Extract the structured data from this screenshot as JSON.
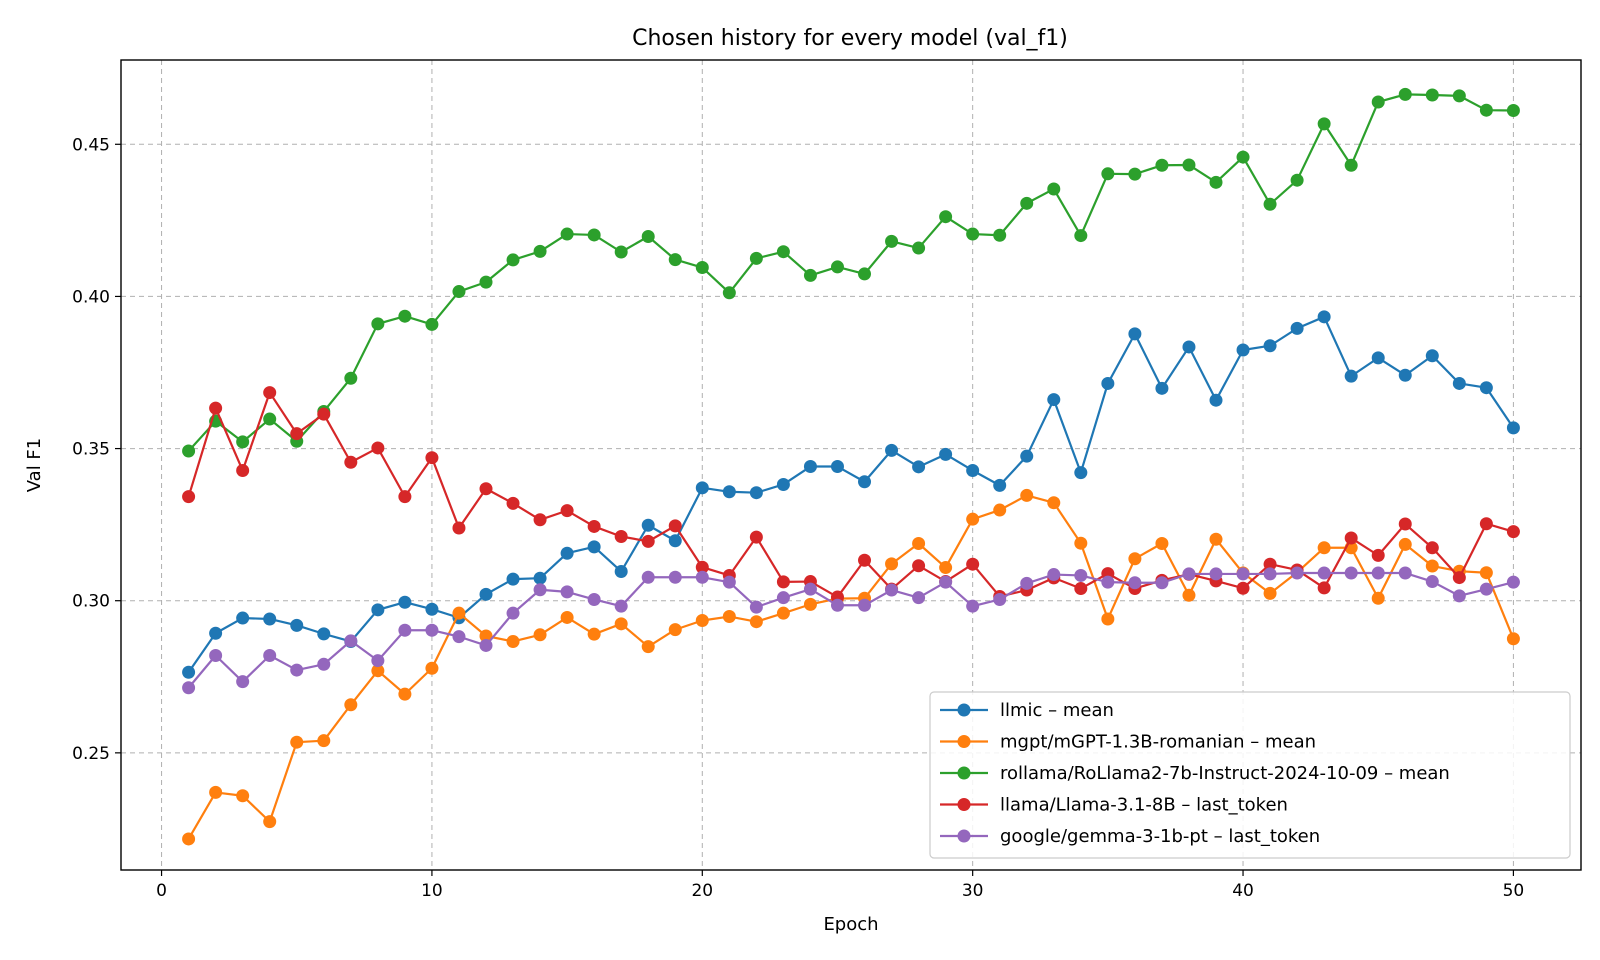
{
  "chart_data": {
    "type": "line",
    "title": "Chosen history for every model (val_f1)",
    "xlabel": "Epoch",
    "ylabel": "Val F1",
    "xlim": [
      -1.5,
      52.5
    ],
    "ylim": [
      0.2115,
      0.4777
    ],
    "xticks": [
      0,
      10,
      20,
      30,
      40,
      50
    ],
    "yticks": [
      0.25,
      0.3,
      0.35,
      0.4,
      0.45
    ],
    "ytick_labels": [
      "0.25",
      "0.30",
      "0.35",
      "0.40",
      "0.45"
    ],
    "grid": true,
    "legend_position": "lower-right",
    "x": [
      1,
      2,
      3,
      4,
      5,
      6,
      7,
      8,
      9,
      10,
      11,
      12,
      13,
      14,
      15,
      16,
      17,
      18,
      19,
      20,
      21,
      22,
      23,
      24,
      25,
      26,
      27,
      28,
      29,
      30,
      31,
      32,
      33,
      34,
      35,
      36,
      37,
      38,
      39,
      40,
      41,
      42,
      43,
      44,
      45,
      46,
      47,
      48,
      49,
      50
    ],
    "series": [
      {
        "name": "llmic – mean",
        "color": "#1f77b4",
        "values": [
          0.2765,
          0.2893,
          0.2943,
          0.294,
          0.2919,
          0.2891,
          0.2866,
          0.297,
          0.2995,
          0.2972,
          0.2944,
          0.3021,
          0.3071,
          0.3074,
          0.3156,
          0.3177,
          0.3096,
          0.3248,
          0.3197,
          0.3371,
          0.3358,
          0.3355,
          0.3382,
          0.3441,
          0.3441,
          0.3391,
          0.3494,
          0.344,
          0.3481,
          0.3428,
          0.3379,
          0.3475,
          0.3661,
          0.3421,
          0.3714,
          0.3877,
          0.3698,
          0.3834,
          0.3659,
          0.3824,
          0.3838,
          0.3895,
          0.3933,
          0.3738,
          0.3798,
          0.3741,
          0.3805,
          0.3714,
          0.37,
          0.3568
        ]
      },
      {
        "name": "mgpt/mGPT-1.3B-romanian – mean",
        "color": "#ff7f0e",
        "values": [
          0.2217,
          0.237,
          0.2359,
          0.2274,
          0.2535,
          0.254,
          0.2658,
          0.277,
          0.2693,
          0.2778,
          0.2959,
          0.2884,
          0.2866,
          0.2888,
          0.2945,
          0.289,
          0.2924,
          0.2849,
          0.2905,
          0.2935,
          0.2948,
          0.2931,
          0.2959,
          0.2988,
          0.3007,
          0.3008,
          0.3121,
          0.3188,
          0.3109,
          0.3268,
          0.3298,
          0.3346,
          0.3322,
          0.3189,
          0.294,
          0.3138,
          0.3188,
          0.3018,
          0.3202,
          0.3091,
          0.3024,
          0.3093,
          0.3174,
          0.3174,
          0.3008,
          0.3185,
          0.3114,
          0.3097,
          0.3092,
          0.2875
        ]
      },
      {
        "name": "rollama/RoLlama2-7b-Instruct-2024-10-09 – mean",
        "color": "#2ca02c",
        "values": [
          0.3492,
          0.359,
          0.3522,
          0.3597,
          0.3524,
          0.3622,
          0.3731,
          0.391,
          0.3935,
          0.3908,
          0.4016,
          0.4047,
          0.412,
          0.4148,
          0.4205,
          0.4202,
          0.4146,
          0.4197,
          0.4121,
          0.4095,
          0.4012,
          0.4125,
          0.4147,
          0.4069,
          0.4097,
          0.4074,
          0.4181,
          0.4159,
          0.4262,
          0.4205,
          0.4201,
          0.4306,
          0.4353,
          0.42,
          0.4403,
          0.4402,
          0.4431,
          0.4432,
          0.4375,
          0.4458,
          0.4303,
          0.4382,
          0.4567,
          0.4431,
          0.4639,
          0.4664,
          0.4662,
          0.4659,
          0.4612,
          0.4611
        ]
      },
      {
        "name": "llama/Llama-3.1-8B – last_token",
        "color": "#d62728",
        "values": [
          0.3342,
          0.3633,
          0.3428,
          0.3684,
          0.3549,
          0.3613,
          0.3455,
          0.3502,
          0.3342,
          0.347,
          0.3239,
          0.3368,
          0.332,
          0.3266,
          0.3296,
          0.3244,
          0.3211,
          0.3195,
          0.3246,
          0.311,
          0.3083,
          0.3209,
          0.3062,
          0.3063,
          0.3012,
          0.3133,
          0.3038,
          0.3115,
          0.3063,
          0.312,
          0.3014,
          0.3035,
          0.3075,
          0.304,
          0.3089,
          0.304,
          0.3067,
          0.3087,
          0.3065,
          0.3041,
          0.312,
          0.3101,
          0.3042,
          0.3206,
          0.3149,
          0.3252,
          0.3174,
          0.3076,
          0.3253,
          0.3227
        ]
      },
      {
        "name": "google/gemma-3-1b-pt – last_token",
        "color": "#9467bd",
        "values": [
          0.2714,
          0.282,
          0.2734,
          0.282,
          0.2772,
          0.2791,
          0.2868,
          0.2803,
          0.2903,
          0.2903,
          0.2882,
          0.2853,
          0.2959,
          0.3036,
          0.3029,
          0.3004,
          0.2982,
          0.3077,
          0.3077,
          0.3077,
          0.3061,
          0.2979,
          0.301,
          0.3038,
          0.2985,
          0.2985,
          0.3035,
          0.301,
          0.3061,
          0.2982,
          0.3004,
          0.3057,
          0.3086,
          0.3083,
          0.3061,
          0.3059,
          0.3059,
          0.3088,
          0.3088,
          0.3088,
          0.3088,
          0.3091,
          0.3091,
          0.3091,
          0.3091,
          0.3091,
          0.3063,
          0.3016,
          0.3038,
          0.3061
        ]
      }
    ]
  }
}
